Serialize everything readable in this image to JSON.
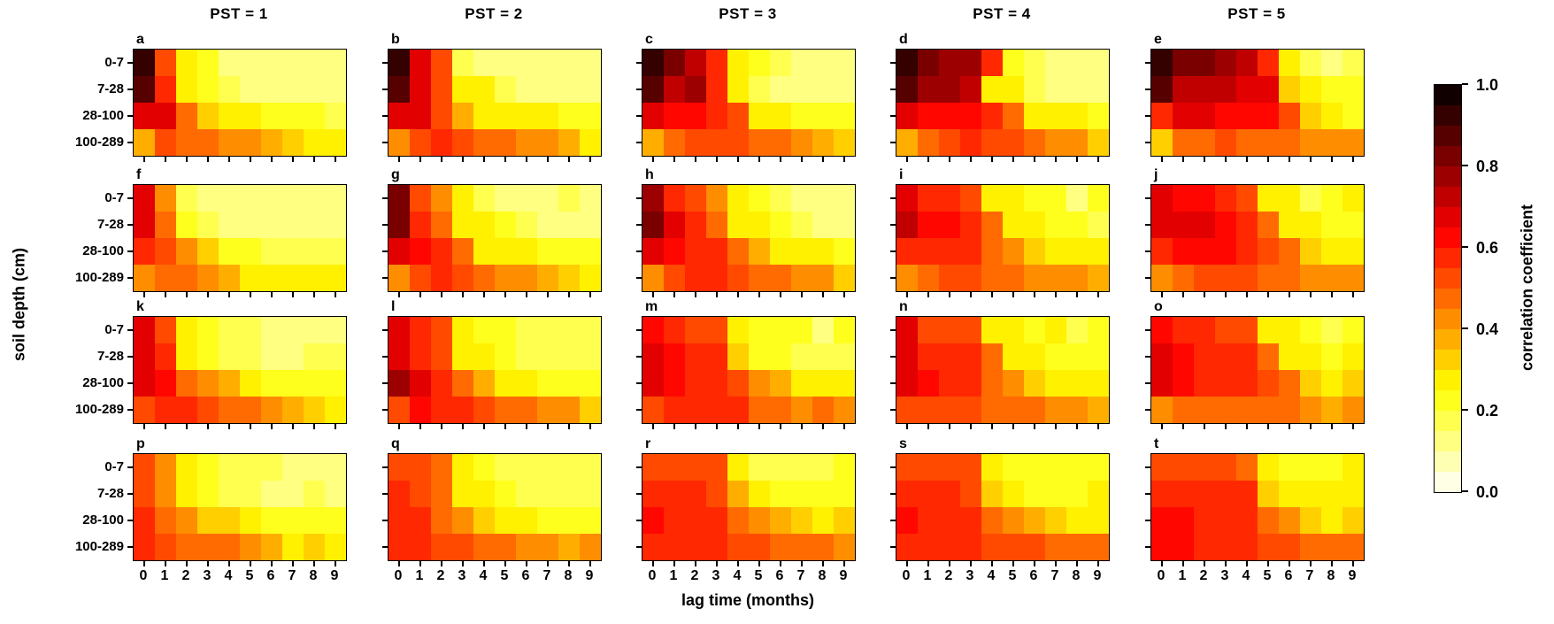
{
  "figure": {
    "column_titles": [
      "PST = 1",
      "PST = 2",
      "PST = 3",
      "PST = 4",
      "PST = 5"
    ],
    "x_axis": {
      "title": "lag time (months)",
      "tick_labels": [
        "0",
        "1",
        "2",
        "3",
        "4",
        "5",
        "6",
        "7",
        "8",
        "9"
      ]
    },
    "y_axis": {
      "title": "soil depth (cm)",
      "tick_labels": [
        "0-7",
        "7-28",
        "28-100",
        "100-289"
      ]
    },
    "colorbar": {
      "title": "correlation coefficient",
      "tick_labels": [
        "1.0",
        "0.8",
        "0.6",
        "0.4",
        "0.2",
        "0.0"
      ],
      "min": 0.0,
      "max": 1.0
    }
  },
  "chart_data": {
    "type": "heatmap",
    "layout": {
      "grid_rows": 4,
      "grid_cols": 5,
      "legend_position": "right",
      "grid": false
    },
    "x": [
      0,
      1,
      2,
      3,
      4,
      5,
      6,
      7,
      8,
      9
    ],
    "xlabel": "lag time (months)",
    "ylabel": "soil depth (cm)",
    "y_categories": [
      "0-7",
      "7-28",
      "28-100",
      "100-289"
    ],
    "value_range": [
      0.0,
      1.0
    ],
    "colormap": "hot_r (0=white, 0.2=yellow, 0.4=orange, 0.6=red, 0.8=dark red, 1=black)",
    "colorbar_title": "correlation coefficient",
    "panels": [
      {
        "letter": "a",
        "pst": 1,
        "values": [
          [
            0.93,
            0.5,
            0.25,
            0.22,
            0.15,
            0.14,
            0.13,
            0.12,
            0.12,
            0.12
          ],
          [
            0.85,
            0.55,
            0.25,
            0.2,
            0.16,
            0.14,
            0.13,
            0.12,
            0.12,
            0.1
          ],
          [
            0.68,
            0.66,
            0.45,
            0.32,
            0.27,
            0.25,
            0.24,
            0.23,
            0.22,
            0.17
          ],
          [
            0.36,
            0.5,
            0.48,
            0.45,
            0.43,
            0.4,
            0.38,
            0.35,
            0.3,
            0.25
          ]
        ]
      },
      {
        "letter": "b",
        "pst": 2,
        "values": [
          [
            0.92,
            0.7,
            0.5,
            0.18,
            0.14,
            0.13,
            0.13,
            0.12,
            0.12,
            0.12
          ],
          [
            0.87,
            0.7,
            0.5,
            0.3,
            0.25,
            0.17,
            0.15,
            0.14,
            0.14,
            0.13
          ],
          [
            0.7,
            0.68,
            0.5,
            0.37,
            0.28,
            0.26,
            0.25,
            0.25,
            0.23,
            0.22
          ],
          [
            0.4,
            0.5,
            0.55,
            0.5,
            0.47,
            0.45,
            0.43,
            0.4,
            0.37,
            0.3
          ]
        ]
      },
      {
        "letter": "c",
        "pst": 3,
        "values": [
          [
            0.95,
            0.82,
            0.72,
            0.55,
            0.25,
            0.22,
            0.18,
            0.15,
            0.15,
            0.15
          ],
          [
            0.86,
            0.73,
            0.78,
            0.58,
            0.28,
            0.18,
            0.15,
            0.15,
            0.15,
            0.15
          ],
          [
            0.68,
            0.63,
            0.62,
            0.6,
            0.5,
            0.28,
            0.25,
            0.23,
            0.22,
            0.2
          ],
          [
            0.38,
            0.48,
            0.52,
            0.52,
            0.5,
            0.48,
            0.45,
            0.4,
            0.38,
            0.35
          ]
        ]
      },
      {
        "letter": "d",
        "pst": 4,
        "values": [
          [
            0.94,
            0.83,
            0.77,
            0.76,
            0.55,
            0.22,
            0.17,
            0.15,
            0.15,
            0.14
          ],
          [
            0.88,
            0.76,
            0.76,
            0.73,
            0.3,
            0.25,
            0.17,
            0.15,
            0.15,
            0.14
          ],
          [
            0.66,
            0.64,
            0.62,
            0.62,
            0.55,
            0.45,
            0.28,
            0.26,
            0.25,
            0.22
          ],
          [
            0.38,
            0.48,
            0.52,
            0.55,
            0.52,
            0.5,
            0.45,
            0.42,
            0.4,
            0.35
          ]
        ]
      },
      {
        "letter": "e",
        "pst": 5,
        "values": [
          [
            0.94,
            0.82,
            0.8,
            0.75,
            0.74,
            0.55,
            0.28,
            0.17,
            0.14,
            0.18
          ],
          [
            0.87,
            0.72,
            0.72,
            0.72,
            0.7,
            0.68,
            0.33,
            0.25,
            0.22,
            0.2
          ],
          [
            0.6,
            0.65,
            0.65,
            0.63,
            0.63,
            0.62,
            0.5,
            0.35,
            0.25,
            0.22
          ],
          [
            0.35,
            0.45,
            0.48,
            0.5,
            0.48,
            0.45,
            0.45,
            0.42,
            0.4,
            0.4
          ]
        ]
      },
      {
        "letter": "f",
        "pst": 1,
        "values": [
          [
            0.7,
            0.42,
            0.18,
            0.15,
            0.12,
            0.12,
            0.11,
            0.11,
            0.11,
            0.11
          ],
          [
            0.7,
            0.46,
            0.22,
            0.16,
            0.13,
            0.12,
            0.12,
            0.12,
            0.13,
            0.13
          ],
          [
            0.57,
            0.53,
            0.44,
            0.31,
            0.24,
            0.21,
            0.17,
            0.16,
            0.19,
            0.19
          ],
          [
            0.4,
            0.48,
            0.45,
            0.4,
            0.38,
            0.3,
            0.27,
            0.25,
            0.27,
            0.28
          ]
        ]
      },
      {
        "letter": "g",
        "pst": 2,
        "values": [
          [
            0.8,
            0.5,
            0.42,
            0.25,
            0.17,
            0.15,
            0.15,
            0.13,
            0.17,
            0.15
          ],
          [
            0.82,
            0.55,
            0.45,
            0.28,
            0.25,
            0.2,
            0.17,
            0.15,
            0.15,
            0.15
          ],
          [
            0.65,
            0.62,
            0.55,
            0.45,
            0.3,
            0.28,
            0.25,
            0.22,
            0.2,
            0.2
          ],
          [
            0.4,
            0.52,
            0.55,
            0.5,
            0.45,
            0.42,
            0.4,
            0.38,
            0.35,
            0.3
          ]
        ]
      },
      {
        "letter": "h",
        "pst": 3,
        "values": [
          [
            0.78,
            0.6,
            0.5,
            0.4,
            0.25,
            0.22,
            0.18,
            0.15,
            0.13,
            0.13
          ],
          [
            0.8,
            0.65,
            0.58,
            0.45,
            0.3,
            0.25,
            0.2,
            0.17,
            0.15,
            0.15
          ],
          [
            0.65,
            0.64,
            0.6,
            0.55,
            0.45,
            0.38,
            0.3,
            0.28,
            0.25,
            0.22
          ],
          [
            0.42,
            0.52,
            0.55,
            0.55,
            0.52,
            0.48,
            0.45,
            0.42,
            0.4,
            0.35
          ]
        ]
      },
      {
        "letter": "i",
        "pst": 4,
        "values": [
          [
            0.7,
            0.6,
            0.58,
            0.5,
            0.28,
            0.25,
            0.22,
            0.22,
            0.15,
            0.2
          ],
          [
            0.72,
            0.64,
            0.62,
            0.58,
            0.45,
            0.3,
            0.25,
            0.22,
            0.2,
            0.17
          ],
          [
            0.56,
            0.58,
            0.58,
            0.55,
            0.48,
            0.42,
            0.35,
            0.3,
            0.28,
            0.25
          ],
          [
            0.42,
            0.48,
            0.5,
            0.5,
            0.48,
            0.46,
            0.44,
            0.42,
            0.4,
            0.37
          ]
        ]
      },
      {
        "letter": "j",
        "pst": 5,
        "values": [
          [
            0.7,
            0.62,
            0.62,
            0.6,
            0.5,
            0.28,
            0.25,
            0.17,
            0.22,
            0.25
          ],
          [
            0.7,
            0.65,
            0.65,
            0.63,
            0.6,
            0.45,
            0.3,
            0.25,
            0.22,
            0.2
          ],
          [
            0.58,
            0.62,
            0.62,
            0.62,
            0.58,
            0.5,
            0.45,
            0.35,
            0.28,
            0.25
          ],
          [
            0.4,
            0.47,
            0.5,
            0.5,
            0.5,
            0.48,
            0.46,
            0.44,
            0.42,
            0.4
          ]
        ]
      },
      {
        "letter": "k",
        "pst": 1,
        "values": [
          [
            0.65,
            0.5,
            0.25,
            0.2,
            0.18,
            0.17,
            0.15,
            0.12,
            0.12,
            0.13
          ],
          [
            0.68,
            0.55,
            0.25,
            0.22,
            0.18,
            0.17,
            0.15,
            0.15,
            0.18,
            0.18
          ],
          [
            0.7,
            0.62,
            0.45,
            0.4,
            0.38,
            0.25,
            0.22,
            0.2,
            0.2,
            0.22
          ],
          [
            0.5,
            0.6,
            0.55,
            0.5,
            0.48,
            0.45,
            0.4,
            0.38,
            0.35,
            0.28
          ]
        ]
      },
      {
        "letter": "l",
        "pst": 2,
        "values": [
          [
            0.68,
            0.55,
            0.5,
            0.25,
            0.22,
            0.2,
            0.18,
            0.17,
            0.17,
            0.17
          ],
          [
            0.7,
            0.58,
            0.5,
            0.3,
            0.25,
            0.22,
            0.18,
            0.17,
            0.17,
            0.17
          ],
          [
            0.75,
            0.65,
            0.55,
            0.45,
            0.38,
            0.3,
            0.25,
            0.22,
            0.22,
            0.2
          ],
          [
            0.5,
            0.62,
            0.6,
            0.55,
            0.5,
            0.48,
            0.45,
            0.42,
            0.4,
            0.35
          ]
        ]
      },
      {
        "letter": "m",
        "pst": 3,
        "values": [
          [
            0.62,
            0.55,
            0.52,
            0.5,
            0.28,
            0.22,
            0.22,
            0.2,
            0.15,
            0.2
          ],
          [
            0.68,
            0.62,
            0.6,
            0.58,
            0.35,
            0.22,
            0.22,
            0.18,
            0.17,
            0.18
          ],
          [
            0.68,
            0.62,
            0.6,
            0.6,
            0.5,
            0.4,
            0.38,
            0.28,
            0.25,
            0.3
          ],
          [
            0.52,
            0.55,
            0.55,
            0.55,
            0.55,
            0.48,
            0.45,
            0.42,
            0.45,
            0.42
          ]
        ]
      },
      {
        "letter": "n",
        "pst": 4,
        "values": [
          [
            0.65,
            0.52,
            0.52,
            0.5,
            0.28,
            0.25,
            0.22,
            0.25,
            0.18,
            0.22
          ],
          [
            0.68,
            0.58,
            0.58,
            0.55,
            0.45,
            0.28,
            0.25,
            0.22,
            0.22,
            0.22
          ],
          [
            0.68,
            0.62,
            0.6,
            0.55,
            0.48,
            0.42,
            0.35,
            0.28,
            0.25,
            0.25
          ],
          [
            0.5,
            0.5,
            0.5,
            0.5,
            0.48,
            0.46,
            0.45,
            0.42,
            0.4,
            0.38
          ]
        ]
      },
      {
        "letter": "o",
        "pst": 5,
        "values": [
          [
            0.62,
            0.58,
            0.58,
            0.52,
            0.5,
            0.28,
            0.25,
            0.22,
            0.18,
            0.22
          ],
          [
            0.65,
            0.62,
            0.6,
            0.6,
            0.58,
            0.45,
            0.3,
            0.25,
            0.22,
            0.25
          ],
          [
            0.65,
            0.62,
            0.6,
            0.6,
            0.55,
            0.5,
            0.45,
            0.35,
            0.28,
            0.33
          ],
          [
            0.4,
            0.48,
            0.48,
            0.48,
            0.48,
            0.45,
            0.45,
            0.42,
            0.38,
            0.42
          ]
        ]
      },
      {
        "letter": "p",
        "pst": 1,
        "values": [
          [
            0.52,
            0.42,
            0.25,
            0.2,
            0.18,
            0.17,
            0.17,
            0.15,
            0.13,
            0.15
          ],
          [
            0.52,
            0.42,
            0.25,
            0.2,
            0.18,
            0.17,
            0.15,
            0.15,
            0.17,
            0.15
          ],
          [
            0.55,
            0.48,
            0.42,
            0.35,
            0.33,
            0.25,
            0.22,
            0.2,
            0.22,
            0.2
          ],
          [
            0.58,
            0.5,
            0.48,
            0.48,
            0.45,
            0.4,
            0.38,
            0.3,
            0.35,
            0.3
          ]
        ]
      },
      {
        "letter": "q",
        "pst": 2,
        "values": [
          [
            0.52,
            0.5,
            0.45,
            0.28,
            0.22,
            0.18,
            0.17,
            0.17,
            0.17,
            0.17
          ],
          [
            0.55,
            0.5,
            0.48,
            0.3,
            0.25,
            0.2,
            0.18,
            0.17,
            0.17,
            0.17
          ],
          [
            0.6,
            0.55,
            0.48,
            0.42,
            0.35,
            0.28,
            0.25,
            0.22,
            0.22,
            0.2
          ],
          [
            0.6,
            0.55,
            0.5,
            0.5,
            0.48,
            0.45,
            0.42,
            0.4,
            0.38,
            0.4
          ]
        ]
      },
      {
        "letter": "r",
        "pst": 3,
        "values": [
          [
            0.52,
            0.5,
            0.5,
            0.5,
            0.25,
            0.18,
            0.17,
            0.17,
            0.17,
            0.2
          ],
          [
            0.55,
            0.55,
            0.55,
            0.53,
            0.38,
            0.25,
            0.22,
            0.2,
            0.2,
            0.22
          ],
          [
            0.62,
            0.58,
            0.58,
            0.55,
            0.45,
            0.42,
            0.38,
            0.35,
            0.28,
            0.32
          ],
          [
            0.6,
            0.58,
            0.55,
            0.55,
            0.53,
            0.5,
            0.48,
            0.45,
            0.45,
            0.42
          ]
        ]
      },
      {
        "letter": "s",
        "pst": 4,
        "values": [
          [
            0.52,
            0.52,
            0.52,
            0.5,
            0.25,
            0.22,
            0.2,
            0.22,
            0.22,
            0.22
          ],
          [
            0.55,
            0.55,
            0.55,
            0.52,
            0.35,
            0.25,
            0.22,
            0.22,
            0.22,
            0.25
          ],
          [
            0.62,
            0.58,
            0.58,
            0.55,
            0.45,
            0.42,
            0.38,
            0.35,
            0.28,
            0.3
          ],
          [
            0.6,
            0.58,
            0.58,
            0.55,
            0.52,
            0.5,
            0.5,
            0.48,
            0.45,
            0.45
          ]
        ]
      },
      {
        "letter": "t",
        "pst": 5,
        "values": [
          [
            0.52,
            0.5,
            0.52,
            0.5,
            0.45,
            0.25,
            0.22,
            0.2,
            0.22,
            0.25
          ],
          [
            0.55,
            0.58,
            0.58,
            0.58,
            0.55,
            0.35,
            0.28,
            0.25,
            0.25,
            0.25
          ],
          [
            0.62,
            0.62,
            0.6,
            0.6,
            0.58,
            0.45,
            0.42,
            0.35,
            0.3,
            0.33
          ],
          [
            0.62,
            0.62,
            0.58,
            0.58,
            0.55,
            0.52,
            0.5,
            0.48,
            0.48,
            0.45
          ]
        ]
      }
    ]
  }
}
